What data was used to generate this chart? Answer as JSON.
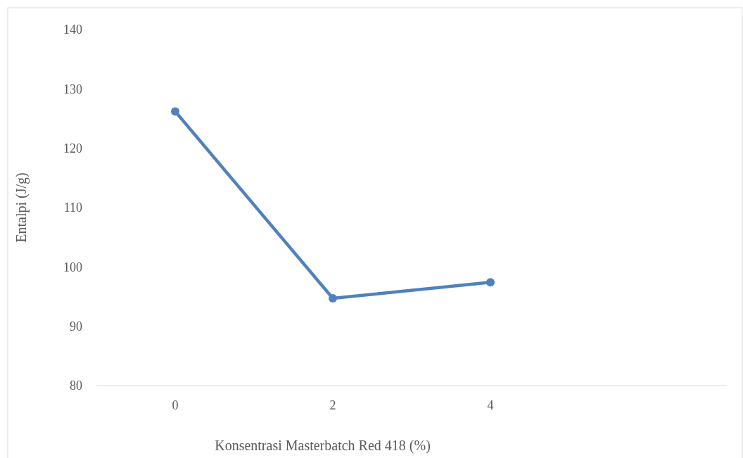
{
  "chart_data": {
    "type": "line",
    "xlabel": "Konsentrasi Masterbatch Red 418 (%)",
    "ylabel": "Entalpi (J/g)",
    "categories": [
      "0",
      "2",
      "4",
      null
    ],
    "series": [
      {
        "color": "#4f81bd",
        "values": [
          126.2,
          94.7,
          97.4,
          null
        ]
      }
    ],
    "ylim": [
      80,
      140
    ],
    "yticks": [
      80,
      90,
      100,
      110,
      120,
      130,
      140
    ],
    "grid": false,
    "marker": "circle",
    "line_style": "solid"
  }
}
